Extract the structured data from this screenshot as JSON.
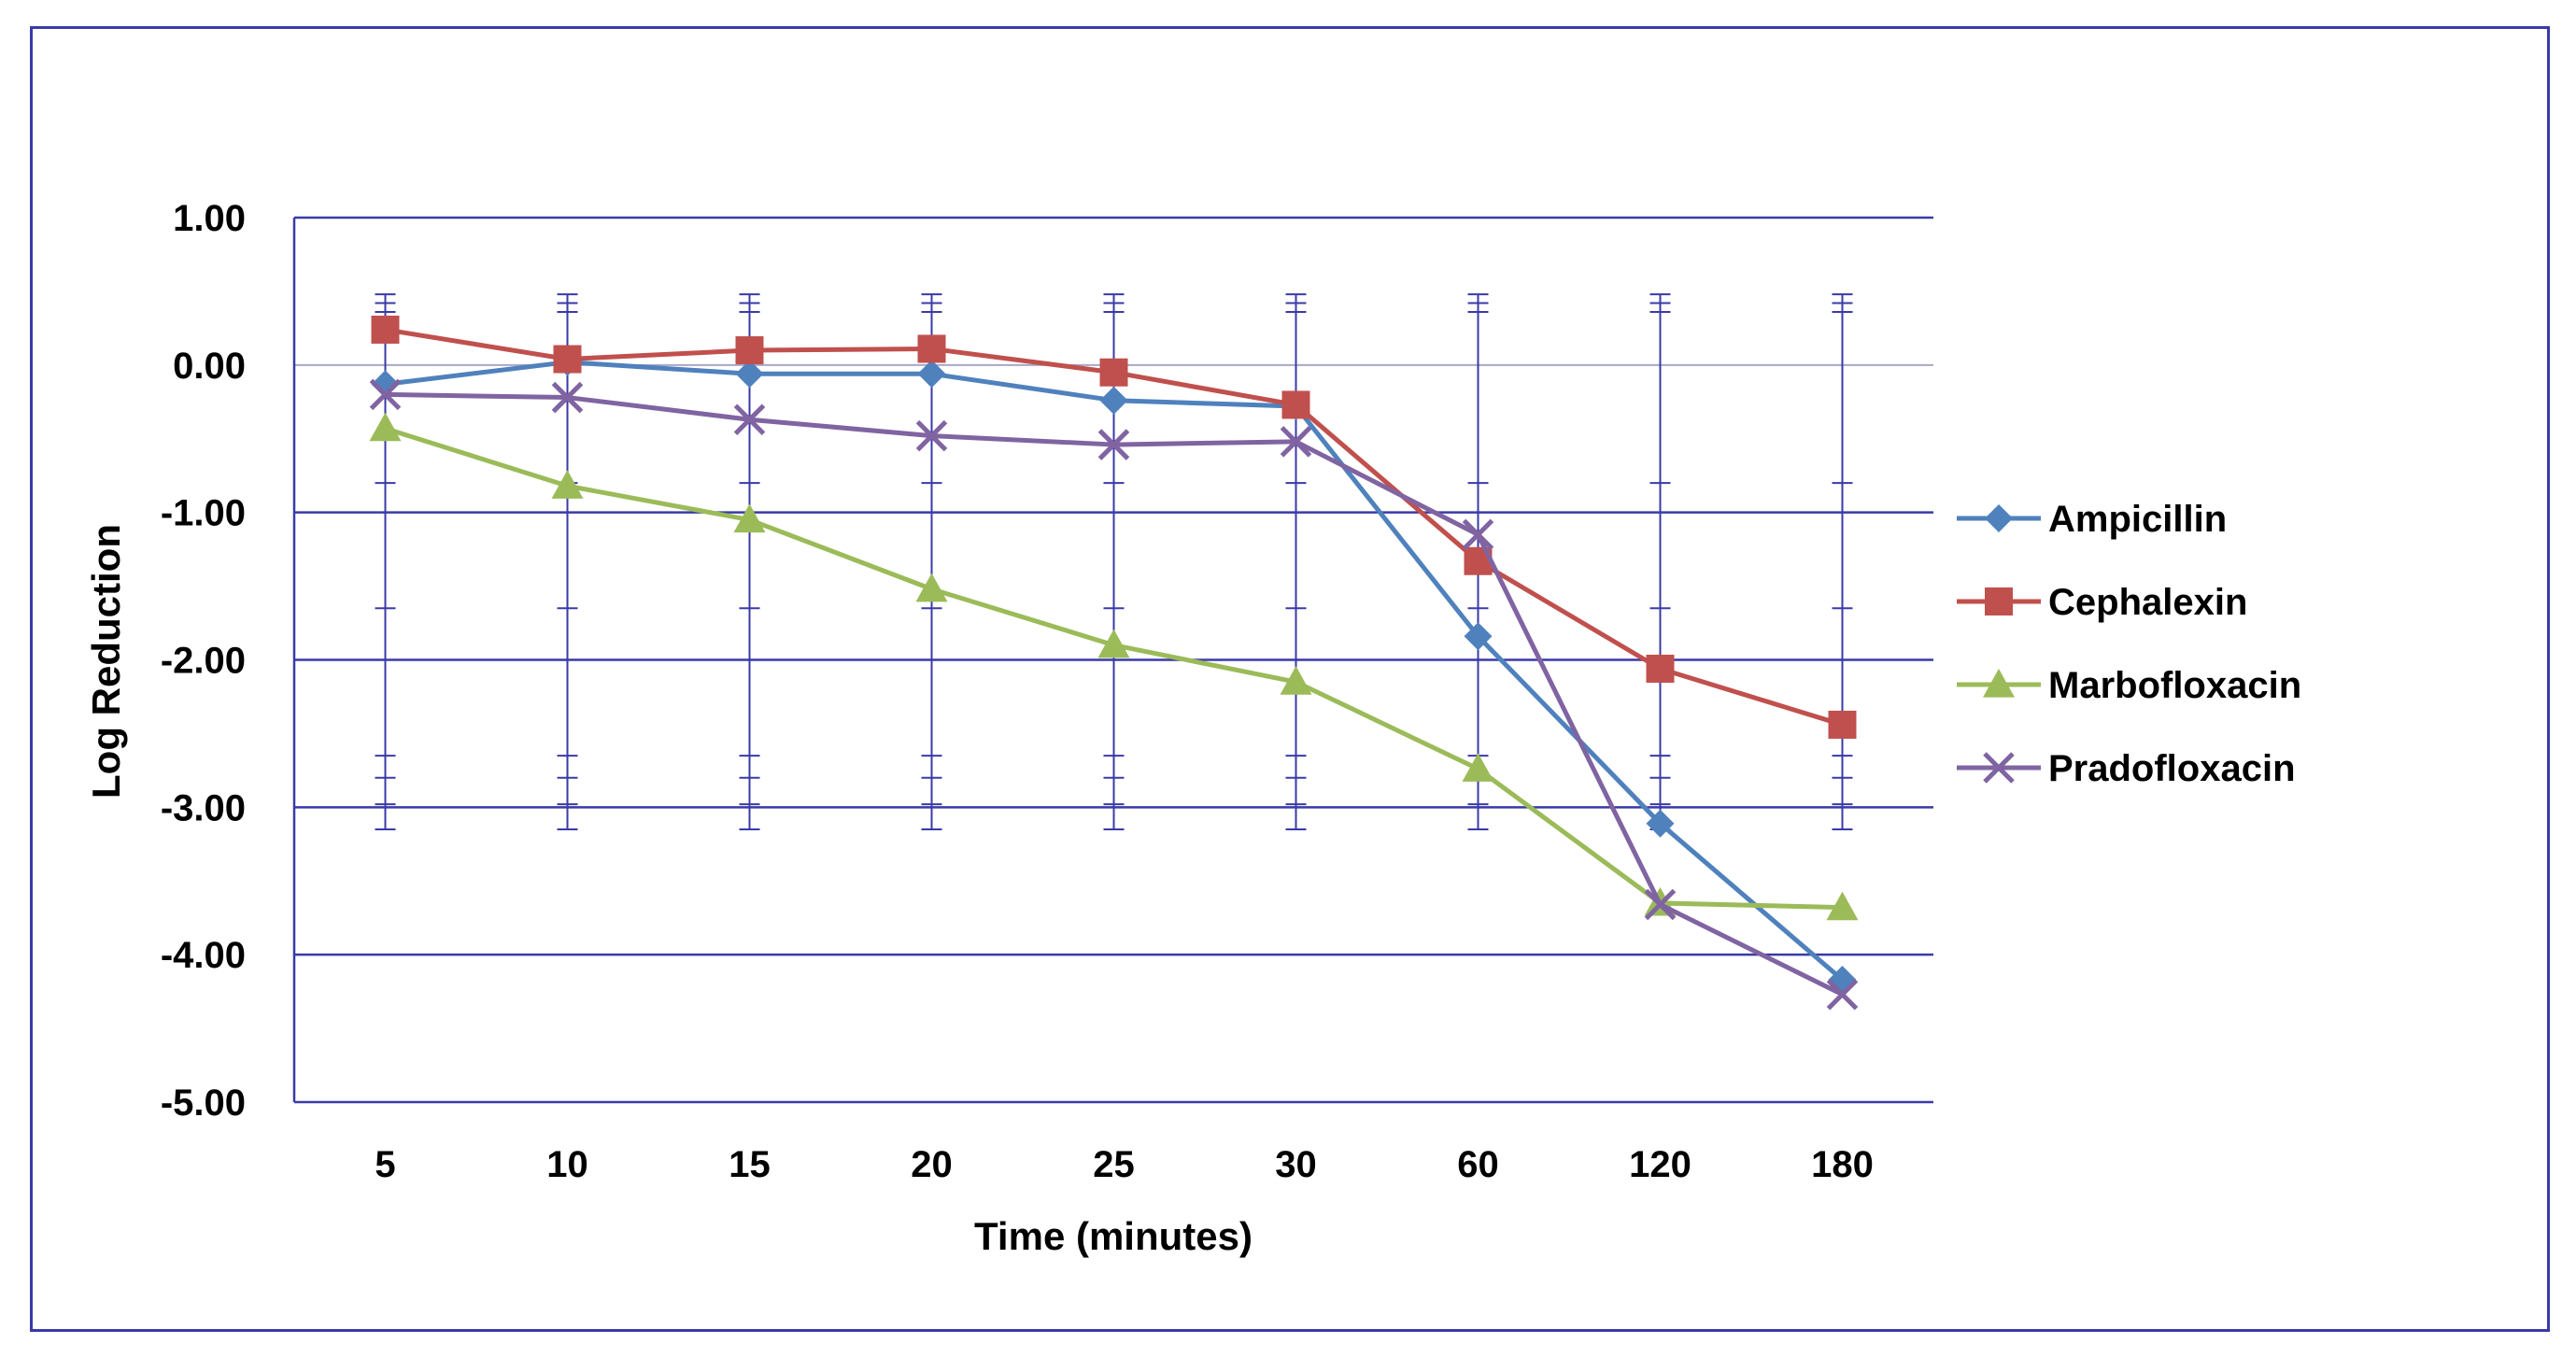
{
  "chart_data": {
    "type": "line",
    "title": "",
    "xlabel": "Time (minutes)",
    "ylabel": "Log Reduction",
    "categories": [
      "5",
      "10",
      "15",
      "20",
      "25",
      "30",
      "60",
      "120",
      "180"
    ],
    "ylim": [
      -5,
      1
    ],
    "yticks": [
      1,
      0,
      -1,
      -2,
      -3,
      -4,
      -5
    ],
    "ytick_labels": [
      "1.00",
      "0.00",
      "-1.00",
      "-2.00",
      "-3.00",
      "-4.00",
      "-5.00"
    ],
    "legend_position": "right",
    "grid": true,
    "series": [
      {
        "name": "Ampicillin",
        "color": "#4f81bd",
        "marker": "diamond",
        "values": [
          -0.13,
          0.02,
          -0.06,
          -0.06,
          -0.24,
          -0.28,
          -1.84,
          -3.11,
          -4.17
        ]
      },
      {
        "name": "Cephalexin",
        "color": "#c0504d",
        "marker": "square",
        "values": [
          0.24,
          0.04,
          0.1,
          0.11,
          -0.05,
          -0.27,
          -1.33,
          -2.06,
          -2.44
        ]
      },
      {
        "name": "Marbofloxacin",
        "color": "#9bbb59",
        "marker": "triangle",
        "values": [
          -0.43,
          -0.82,
          -1.05,
          -1.52,
          -1.9,
          -2.15,
          -2.74,
          -3.65,
          -3.68
        ]
      },
      {
        "name": "Pradofloxacin",
        "color": "#8064a2",
        "marker": "x",
        "values": [
          -0.2,
          -0.22,
          -0.37,
          -0.48,
          -0.54,
          -0.52,
          -1.15,
          -3.66,
          -4.27
        ]
      }
    ],
    "error_bars": {
      "color": "#3a3aa8",
      "upper": 0.48,
      "lower": -3.15,
      "cap_levels": [
        0.48,
        0.42,
        0.36,
        -0.8,
        -1.65,
        -2.65,
        -2.8,
        -2.98,
        -3.15
      ]
    }
  }
}
